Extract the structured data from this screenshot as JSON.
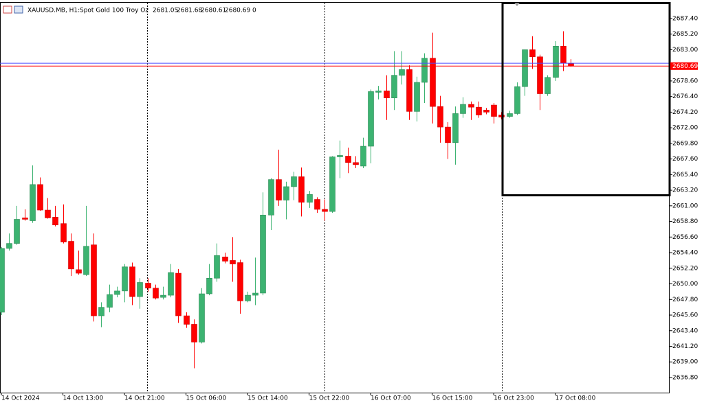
{
  "chart_data": {
    "type": "candlestick",
    "symbol": "XAUUSD.MB, H1:",
    "description": "Spot Gold 100 Troy Oz",
    "volume": 0,
    "categories": [
      "14 Oct 2024",
      null,
      null,
      null,
      null,
      null,
      null,
      null,
      "14 Oct 13:00",
      null,
      null,
      null,
      null,
      null,
      null,
      null,
      "14 Oct 21:00",
      null,
      null,
      null,
      null,
      null,
      null,
      null,
      "15 Oct 06:00",
      null,
      null,
      null,
      null,
      null,
      null,
      null,
      "15 Oct 14:00",
      null,
      null,
      null,
      null,
      null,
      null,
      null,
      "15 Oct 22:00",
      null,
      null,
      null,
      null,
      null,
      null,
      null,
      "16 Oct 07:00",
      null,
      null,
      null,
      null,
      null,
      null,
      null,
      "16 Oct 15:00",
      null,
      null,
      null,
      null,
      null,
      null,
      null,
      "16 Oct 23:00",
      null,
      null,
      null,
      null,
      null,
      null,
      null,
      "17 Oct 08:00",
      null,
      null
    ],
    "open": [
      2646.0,
      2655.0,
      2655.7,
      2659.3,
      2658.9,
      2664.0,
      2660.4,
      2659.4,
      2658.5,
      2656.0,
      2652.0,
      2651.3,
      2655.5,
      2645.5,
      2646.7,
      2648.5,
      2649.0,
      2652.4,
      2648.2,
      2650.1,
      2649.4,
      2648.1,
      2648.4,
      2651.5,
      2645.5,
      2644.3,
      2641.8,
      2648.6,
      2650.8,
      2653.8,
      2653.3,
      2653.0,
      2647.6,
      2648.4,
      2648.7,
      2659.7,
      2664.7,
      2661.8,
      2663.7,
      2665.1,
      2661.5,
      2661.9,
      2660.5,
      2660.2,
      2667.9,
      2668.0,
      2667.1,
      2666.6,
      2669.4,
      2677.0,
      2677.2,
      2676.2,
      2679.4,
      2680.2,
      2674.3,
      2678.4,
      2681.8,
      2675.0,
      2672.1,
      2669.9,
      2674.0,
      2675.3,
      2674.9,
      2674.5,
      2675.2,
      2673.8,
      2673.6,
      2674.0,
      2677.8,
      2683.0,
      2682.0,
      2676.8,
      2679.1,
      2683.5,
      2681.05
    ],
    "high": [
      2655.2,
      2657.1,
      2661.0,
      2660.5,
      2666.7,
      2665.0,
      2662.1,
      2661.0,
      2661.2,
      2657.1,
      2654.7,
      2661.0,
      2657.1,
      2647.4,
      2649.9,
      2649.6,
      2652.8,
      2653.0,
      2650.8,
      2650.8,
      2649.9,
      2649.6,
      2652.8,
      2652.1,
      2646.0,
      2645.0,
      2649.4,
      2652.8,
      2655.7,
      2654.4,
      2656.6,
      2653.4,
      2648.9,
      2653.7,
      2662.9,
      2664.9,
      2668.9,
      2664.4,
      2665.8,
      2666.4,
      2663.1,
      2662.2,
      2661.9,
      2668.0,
      2670.2,
      2669.2,
      2668.0,
      2670.6,
      2677.4,
      2677.9,
      2679.4,
      2682.8,
      2682.8,
      2680.8,
      2679.2,
      2682.5,
      2685.4,
      2676.5,
      2672.8,
      2675.0,
      2676.3,
      2675.7,
      2675.7,
      2674.8,
      2675.5,
      2674.2,
      2674.4,
      2678.4,
      2683.0,
      2684.9,
      2682.3,
      2679.4,
      2684.2,
      2685.6,
      2681.68
    ],
    "low": [
      2645.6,
      2654.7,
      2655.5,
      2658.9,
      2658.6,
      2660.3,
      2659.2,
      2658.1,
      2655.7,
      2651.1,
      2651.3,
      2651.1,
      2644.7,
      2643.9,
      2646.0,
      2648.1,
      2647.4,
      2647.0,
      2646.5,
      2648.9,
      2647.8,
      2647.8,
      2648.1,
      2644.5,
      2643.8,
      2638.1,
      2641.6,
      2648.4,
      2650.3,
      2652.9,
      2650.3,
      2645.8,
      2647.4,
      2647.0,
      2648.4,
      2657.6,
      2661.0,
      2659.1,
      2661.8,
      2659.5,
      2660.7,
      2660.0,
      2658.9,
      2660.0,
      2664.9,
      2665.6,
      2666.3,
      2666.3,
      2667.0,
      2676.0,
      2673.1,
      2674.5,
      2678.1,
      2673.1,
      2672.9,
      2675.5,
      2672.6,
      2669.9,
      2667.6,
      2666.8,
      2673.4,
      2673.1,
      2673.4,
      2673.9,
      2672.6,
      2673.2,
      2673.4,
      2673.8,
      2676.5,
      2680.3,
      2674.5,
      2676.5,
      2678.6,
      2680.0,
      2680.61
    ],
    "close": [
      2655.0,
      2655.7,
      2659.1,
      2659.1,
      2664.0,
      2660.4,
      2659.3,
      2658.3,
      2655.9,
      2652.1,
      2651.5,
      2655.3,
      2645.5,
      2646.7,
      2648.5,
      2649.0,
      2652.4,
      2648.2,
      2650.2,
      2649.4,
      2648.0,
      2648.4,
      2651.6,
      2645.5,
      2644.3,
      2641.8,
      2648.6,
      2650.8,
      2654.0,
      2653.2,
      2652.8,
      2647.6,
      2648.4,
      2648.7,
      2659.7,
      2664.7,
      2661.8,
      2663.7,
      2665.1,
      2661.5,
      2662.6,
      2660.5,
      2660.2,
      2667.9,
      2668.1,
      2667.1,
      2666.8,
      2669.4,
      2677.1,
      2677.2,
      2676.2,
      2679.4,
      2680.2,
      2674.3,
      2678.4,
      2681.8,
      2675.0,
      2672.1,
      2669.9,
      2674.0,
      2675.3,
      2674.9,
      2673.8,
      2674.2,
      2673.6,
      2673.5,
      2674.0,
      2677.8,
      2683.0,
      2682.0,
      2676.8,
      2679.1,
      2683.5,
      2681.1,
      2680.69
    ],
    "up_color": "#3cb371",
    "down_color": "#ff0000",
    "bid": 2680.69,
    "bid_color": "#ff0000",
    "ask": 2681.1,
    "ask_color": "#4b4bff",
    "ylim": [
      2634.67,
      2689.62
    ],
    "yticks": [
      {
        "value": 2687.4,
        "label": "2687.40"
      },
      {
        "value": 2685.2,
        "label": "2685.20"
      },
      {
        "value": 2683.0,
        "label": "2683.00"
      },
      {
        "value": 2680.8,
        "label": "2680.80"
      },
      {
        "value": 2678.6,
        "label": "2678.60"
      },
      {
        "value": 2676.4,
        "label": "2676.40"
      },
      {
        "value": 2674.2,
        "label": "2674.20"
      },
      {
        "value": 2672.0,
        "label": "2672.00"
      },
      {
        "value": 2669.8,
        "label": "2669.80"
      },
      {
        "value": 2667.6,
        "label": "2667.60"
      },
      {
        "value": 2665.4,
        "label": "2665.40"
      },
      {
        "value": 2663.2,
        "label": "2663.20"
      },
      {
        "value": 2661.0,
        "label": "2661.00"
      },
      {
        "value": 2658.8,
        "label": "2658.80"
      },
      {
        "value": 2656.6,
        "label": "2656.60"
      },
      {
        "value": 2654.4,
        "label": "2654.40"
      },
      {
        "value": 2652.2,
        "label": "2652.20"
      },
      {
        "value": 2650.0,
        "label": "2650.00"
      },
      {
        "value": 2647.8,
        "label": "2647.80"
      },
      {
        "value": 2645.6,
        "label": "2645.60"
      },
      {
        "value": 2643.4,
        "label": "2643.40"
      },
      {
        "value": 2641.2,
        "label": "2641.20"
      },
      {
        "value": 2639.0,
        "label": "2639.00"
      },
      {
        "value": 2636.8,
        "label": "2636.80"
      }
    ]
  }
}
